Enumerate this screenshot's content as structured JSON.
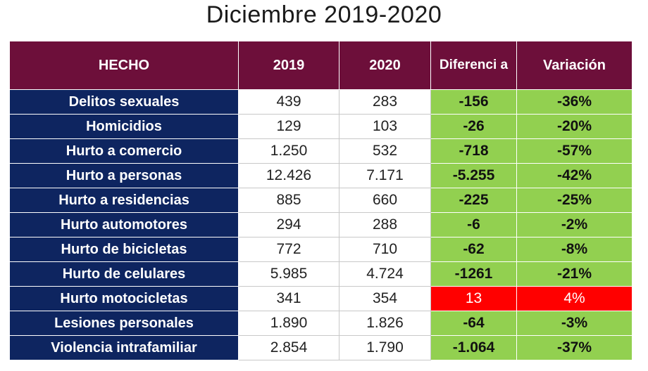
{
  "title": "Diciembre 2019-2020",
  "colors": {
    "header": "#6d0f3a",
    "row_label": "#0e2560",
    "decrease": "#92d050",
    "increase": "#ff0000"
  },
  "table": {
    "headers": [
      "HECHO",
      "2019",
      "2020",
      "Diferenci a",
      "Variación"
    ],
    "rows": [
      {
        "hecho": "Delitos sexuales",
        "y2019": "439",
        "y2020": "283",
        "diferencia": "-156",
        "variacion": "-36%",
        "status": "decrease"
      },
      {
        "hecho": "Homicidios",
        "y2019": "129",
        "y2020": "103",
        "diferencia": "-26",
        "variacion": "-20%",
        "status": "decrease"
      },
      {
        "hecho": "Hurto a comercio",
        "y2019": "1.250",
        "y2020": "532",
        "diferencia": "-718",
        "variacion": "-57%",
        "status": "decrease"
      },
      {
        "hecho": "Hurto a personas",
        "y2019": "12.426",
        "y2020": "7.171",
        "diferencia": "-5.255",
        "variacion": "-42%",
        "status": "decrease"
      },
      {
        "hecho": "Hurto a residencias",
        "y2019": "885",
        "y2020": "660",
        "diferencia": "-225",
        "variacion": "-25%",
        "status": "decrease"
      },
      {
        "hecho": "Hurto automotores",
        "y2019": "294",
        "y2020": "288",
        "diferencia": "-6",
        "variacion": "-2%",
        "status": "decrease"
      },
      {
        "hecho": "Hurto de bicicletas",
        "y2019": "772",
        "y2020": "710",
        "diferencia": "-62",
        "variacion": "-8%",
        "status": "decrease"
      },
      {
        "hecho": "Hurto de celulares",
        "y2019": "5.985",
        "y2020": "4.724",
        "diferencia": "-1261",
        "variacion": "-21%",
        "status": "decrease"
      },
      {
        "hecho": "Hurto motocicletas",
        "y2019": "341",
        "y2020": "354",
        "diferencia": "13",
        "variacion": "4%",
        "status": "increase"
      },
      {
        "hecho": "Lesiones personales",
        "y2019": "1.890",
        "y2020": "1.826",
        "diferencia": "-64",
        "variacion": "-3%",
        "status": "decrease"
      },
      {
        "hecho": "Violencia intrafamiliar",
        "y2019": "2.854",
        "y2020": "1.790",
        "diferencia": "-1.064",
        "variacion": "-37%",
        "status": "decrease"
      }
    ]
  }
}
